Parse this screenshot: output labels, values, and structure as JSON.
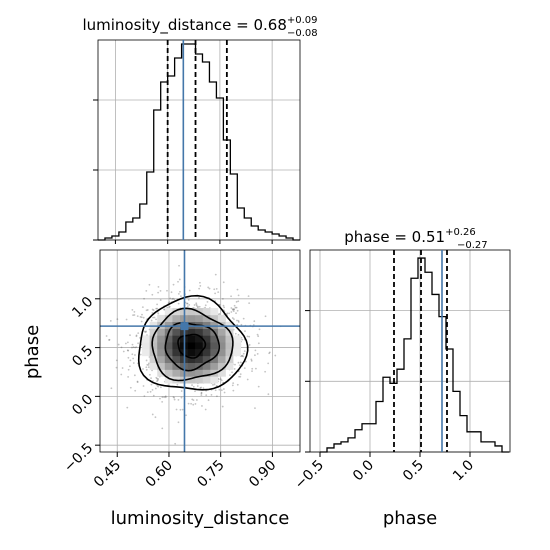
{
  "chart_data": [
    {
      "type": "histogram",
      "panel": "top-left",
      "title_main": "luminosity_distance = 0.68",
      "title_sup": "+0.09",
      "title_sub": "−0.08",
      "xlim": [
        0.4,
        0.98
      ],
      "x_ticks": [
        0.45,
        0.6,
        0.75,
        0.9
      ],
      "ylim": [
        0,
        1.0
      ],
      "y_ticks": [
        0.0,
        0.35,
        0.7
      ],
      "bin_edges": [
        0.4,
        0.42,
        0.44,
        0.46,
        0.48,
        0.5,
        0.52,
        0.54,
        0.56,
        0.58,
        0.6,
        0.62,
        0.64,
        0.66,
        0.68,
        0.7,
        0.72,
        0.74,
        0.76,
        0.78,
        0.8,
        0.82,
        0.84,
        0.86,
        0.88,
        0.9,
        0.92,
        0.94,
        0.96,
        0.98
      ],
      "counts": [
        0.0,
        0.01,
        0.02,
        0.04,
        0.09,
        0.11,
        0.18,
        0.34,
        0.65,
        0.79,
        0.82,
        0.91,
        0.98,
        0.98,
        0.93,
        0.89,
        0.79,
        0.71,
        0.5,
        0.33,
        0.16,
        0.11,
        0.07,
        0.05,
        0.04,
        0.03,
        0.02,
        0.01,
        0.0
      ],
      "quantiles": [
        0.6,
        0.68,
        0.77
      ],
      "truth": 0.645,
      "grid": true
    },
    {
      "type": "histogram",
      "panel": "bottom-right",
      "title_main": "phase = 0.51",
      "title_sup": "+0.26",
      "title_sub": "−0.27",
      "xlim": [
        -0.6,
        1.4
      ],
      "x_labels": [
        "−0.5",
        "0.0",
        "0.5",
        "1.0"
      ],
      "x_ticks": [
        -0.5,
        0.0,
        0.5,
        1.0
      ],
      "ylim": [
        0,
        1.0
      ],
      "y_ticks": [
        0.0,
        0.35,
        0.7
      ],
      "xlabel": "phase",
      "bin_edges": [
        -0.5,
        -0.43,
        -0.36,
        -0.29,
        -0.22,
        -0.15,
        -0.08,
        -0.01,
        0.06,
        0.13,
        0.2,
        0.27,
        0.34,
        0.41,
        0.48,
        0.55,
        0.62,
        0.69,
        0.76,
        0.83,
        0.9,
        0.97,
        1.04,
        1.11,
        1.18,
        1.25,
        1.32,
        1.39
      ],
      "counts": [
        0.0,
        0.02,
        0.04,
        0.05,
        0.07,
        0.11,
        0.14,
        0.14,
        0.25,
        0.37,
        0.34,
        0.41,
        0.56,
        0.86,
        0.96,
        0.89,
        0.78,
        0.67,
        0.51,
        0.3,
        0.18,
        0.1,
        0.1,
        0.05,
        0.05,
        0.03,
        0.0
      ],
      "quantiles": [
        0.24,
        0.51,
        0.77
      ],
      "truth": 0.72,
      "grid": true
    },
    {
      "type": "scatter-density",
      "panel": "bottom-left",
      "xlim": [
        0.4,
        0.98
      ],
      "ylim": [
        -0.57,
        1.5
      ],
      "x_ticks": [
        0.45,
        0.6,
        0.75,
        0.9
      ],
      "y_ticks": [
        -0.5,
        0.0,
        0.5,
        1.0
      ],
      "y_labels": [
        "−0.5",
        "0.0",
        "0.5",
        "1.0"
      ],
      "xlabel": "luminosity_distance",
      "ylabel": "phase",
      "center": [
        0.665,
        0.52
      ],
      "spread": [
        0.082,
        0.25
      ],
      "truth": [
        0.645,
        0.72
      ],
      "truth_marker": [
        0.645,
        0.72
      ],
      "grid": true
    }
  ],
  "x_tick_labels_lum": [
    "0.45",
    "0.60",
    "0.75",
    "0.90"
  ],
  "colors": {
    "truth": "#4477aa",
    "line": "#000000",
    "grid": "#b0b0b0"
  }
}
